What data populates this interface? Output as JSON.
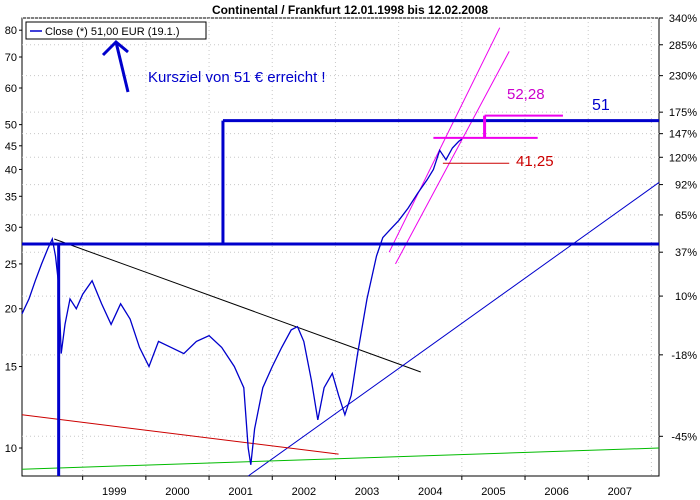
{
  "chart_data": {
    "type": "line",
    "title": "Continental / Frankfurt 12.01.1998 bis 12.02.2008",
    "legend": {
      "label": "Close (*) 51,00 EUR (19.1.)",
      "placement": "top-left"
    },
    "y_scale": "log",
    "ylim": [
      8.7,
      85
    ],
    "xlim": [
      1998.04,
      2008.12
    ],
    "x_ticks": [
      "1999",
      "2000",
      "2001",
      "2002",
      "2003",
      "2004",
      "2005",
      "2006",
      "2007"
    ],
    "y_ticks": [
      "10",
      "15",
      "20",
      "25",
      "30",
      "35",
      "40",
      "45",
      "50",
      "60",
      "70",
      "80"
    ],
    "y_ticks_values": [
      10,
      15,
      20,
      25,
      30,
      35,
      40,
      45,
      50,
      60,
      70,
      80
    ],
    "right_ticks": [
      {
        "label": "340%",
        "value": 85
      },
      {
        "label": "285%",
        "value": 74.4
      },
      {
        "label": "230%",
        "value": 63.8
      },
      {
        "label": "175%",
        "value": 53.2
      },
      {
        "label": "147%",
        "value": 47.8
      },
      {
        "label": "120%",
        "value": 42.5
      },
      {
        "label": "92%",
        "value": 37.1
      },
      {
        "label": "65%",
        "value": 31.9
      },
      {
        "label": "37%",
        "value": 26.5
      },
      {
        "label": "10%",
        "value": 21.3
      },
      {
        "label": "-18%",
        "value": 15.9
      },
      {
        "label": "-45%",
        "value": 10.6
      }
    ],
    "series": [
      {
        "color": "#0000cc",
        "points": [
          [
            1998.04,
            19.5
          ],
          [
            1998.15,
            21.0
          ],
          [
            1998.25,
            23.0
          ],
          [
            1998.35,
            25.0
          ],
          [
            1998.45,
            27.0
          ],
          [
            1998.52,
            28.3
          ],
          [
            1998.57,
            26.0
          ],
          [
            1998.62,
            22.5
          ],
          [
            1998.66,
            16.0
          ],
          [
            1998.72,
            18.5
          ],
          [
            1998.8,
            21.0
          ],
          [
            1998.9,
            20.0
          ],
          [
            1999.0,
            21.5
          ],
          [
            1999.15,
            23.0
          ],
          [
            1999.3,
            20.5
          ],
          [
            1999.45,
            18.5
          ],
          [
            1999.6,
            20.5
          ],
          [
            1999.75,
            19.0
          ],
          [
            1999.9,
            16.5
          ],
          [
            2000.05,
            15.0
          ],
          [
            2000.2,
            17.0
          ],
          [
            2000.4,
            16.5
          ],
          [
            2000.6,
            16.0
          ],
          [
            2000.8,
            17.0
          ],
          [
            2001.0,
            17.5
          ],
          [
            2001.2,
            16.5
          ],
          [
            2001.4,
            15.0
          ],
          [
            2001.55,
            13.5
          ],
          [
            2001.62,
            10.0
          ],
          [
            2001.66,
            9.2
          ],
          [
            2001.72,
            11.0
          ],
          [
            2001.85,
            13.5
          ],
          [
            2002.0,
            15.0
          ],
          [
            2002.15,
            16.5
          ],
          [
            2002.3,
            18.0
          ],
          [
            2002.4,
            18.3
          ],
          [
            2002.5,
            17.0
          ],
          [
            2002.62,
            14.0
          ],
          [
            2002.72,
            11.5
          ],
          [
            2002.82,
            13.5
          ],
          [
            2002.95,
            14.5
          ],
          [
            2003.05,
            13.0
          ],
          [
            2003.15,
            11.8
          ],
          [
            2003.25,
            13.0
          ],
          [
            2003.35,
            16.0
          ],
          [
            2003.5,
            21.0
          ],
          [
            2003.65,
            26.0
          ],
          [
            2003.75,
            28.5
          ],
          [
            2003.9,
            30.0
          ],
          [
            2004.0,
            31.0
          ],
          [
            2004.15,
            33.0
          ],
          [
            2004.3,
            35.5
          ],
          [
            2004.45,
            38.0
          ],
          [
            2004.55,
            40.0
          ],
          [
            2004.65,
            44.0
          ],
          [
            2004.75,
            42.0
          ],
          [
            2004.85,
            44.5
          ],
          [
            2004.95,
            46.0
          ],
          [
            2005.0,
            46.5
          ]
        ]
      }
    ],
    "annotations": [
      {
        "text": "Kursziel von 51 € erreicht !",
        "color": "#0000cc"
      },
      {
        "text": "51",
        "color": "#0000cc",
        "value": 51
      },
      {
        "text": "52,28",
        "color": "#cc00cc",
        "value": 52.28
      },
      {
        "text": "41,25",
        "color": "#cc0000",
        "value": 41.25
      }
    ],
    "trendlines": [
      {
        "color": "#000000",
        "from": [
          1998.55,
          28.3
        ],
        "to": [
          2004.35,
          14.6
        ]
      },
      {
        "color": "#0000cc",
        "from": [
          2001.62,
          8.7
        ],
        "to": [
          2008.12,
          37.5
        ]
      },
      {
        "color": "#cc0000",
        "from": [
          1998.04,
          11.8
        ],
        "to": [
          2003.05,
          9.7
        ]
      },
      {
        "color": "#00bb00",
        "from": [
          1998.04,
          9.0
        ],
        "to": [
          2008.12,
          10.0
        ]
      },
      {
        "color": "#ee00ee",
        "from": [
          2003.85,
          26.5
        ],
        "to": [
          2005.6,
          81.0
        ]
      },
      {
        "color": "#ee00ee",
        "from": [
          2003.95,
          25.0
        ],
        "to": [
          2005.75,
          72.0
        ]
      },
      {
        "color": "#0000cc",
        "from": [
          1998.04,
          27.6
        ],
        "to": [
          2008.12,
          27.6
        ]
      },
      {
        "color": "#0000cc",
        "from": [
          2001.22,
          51.0
        ],
        "to": [
          2008.12,
          51.0
        ]
      },
      {
        "color": "#0000cc",
        "from": [
          2001.22,
          27.6
        ],
        "to": [
          2001.22,
          51.0
        ]
      },
      {
        "color": "#0000cc",
        "from": [
          1998.62,
          8.7
        ],
        "to": [
          1998.62,
          27.6
        ]
      },
      {
        "color": "#cc0000",
        "from": [
          2004.7,
          41.25
        ],
        "to": [
          2005.75,
          41.25
        ]
      },
      {
        "color": "#ee00ee",
        "from": [
          2004.55,
          46.8
        ],
        "to": [
          2006.2,
          46.8
        ]
      },
      {
        "color": "#ee00ee",
        "from": [
          2005.36,
          52.28
        ],
        "to": [
          2006.6,
          52.28
        ]
      },
      {
        "color": "#ee00ee",
        "from": [
          2005.36,
          46.8
        ],
        "to": [
          2005.36,
          52.28
        ]
      }
    ]
  }
}
